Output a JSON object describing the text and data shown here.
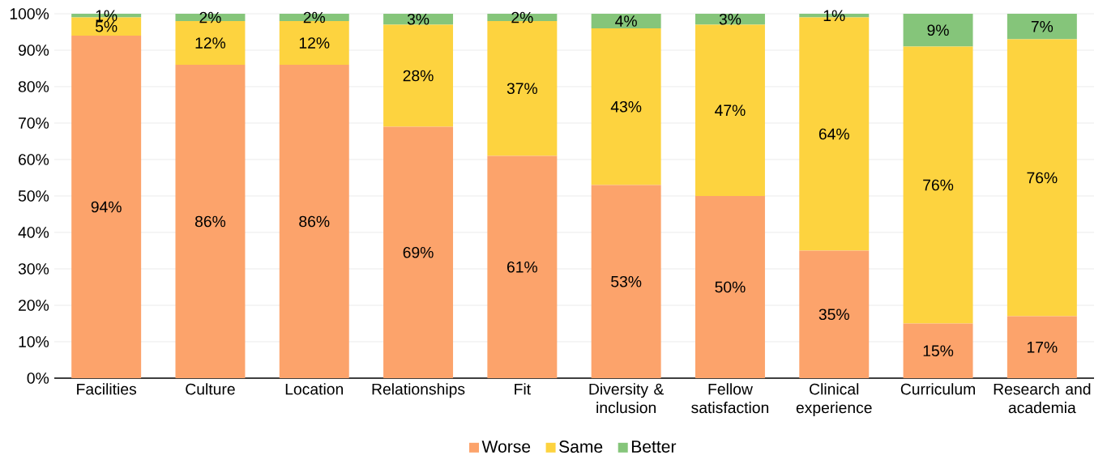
{
  "chart_data": {
    "type": "bar",
    "stacked": true,
    "categories": [
      "Facilities",
      "Culture",
      "Location",
      "Relationships",
      "Fit",
      "Diversity & inclusion",
      "Fellow satisfaction",
      "Clinical experience",
      "Curriculum",
      "Research and academia"
    ],
    "series": [
      {
        "name": "Worse",
        "color": "#fca36b",
        "values": [
          94,
          86,
          86,
          69,
          61,
          53,
          50,
          35,
          15,
          17
        ],
        "value_labels": [
          "94%",
          "86%",
          "86%",
          "69%",
          "61%",
          "53%",
          "50%",
          "35%",
          "15%",
          "17%"
        ]
      },
      {
        "name": "Same",
        "color": "#fdd33f",
        "values": [
          5,
          12,
          12,
          28,
          37,
          43,
          47,
          64,
          76,
          76
        ],
        "value_labels": [
          "5%",
          "12%",
          "12%",
          "28%",
          "37%",
          "43%",
          "47%",
          "64%",
          "76%",
          "76%"
        ]
      },
      {
        "name": "Better",
        "color": "#85c57a",
        "values": [
          1,
          2,
          2,
          3,
          2,
          4,
          3,
          1,
          9,
          7
        ],
        "value_labels": [
          "1%",
          "2%",
          "2%",
          "3%",
          "2%",
          "4%",
          "3%",
          "1%",
          "9%",
          "7%"
        ]
      }
    ],
    "ylim": [
      0,
      100
    ],
    "yticks": [
      {
        "value": 0,
        "label": "0%"
      },
      {
        "value": 10,
        "label": "10%"
      },
      {
        "value": 20,
        "label": "20%"
      },
      {
        "value": 30,
        "label": "30%"
      },
      {
        "value": 40,
        "label": "40%"
      },
      {
        "value": 50,
        "label": "50%"
      },
      {
        "value": 60,
        "label": "60%"
      },
      {
        "value": 70,
        "label": "70%"
      },
      {
        "value": 80,
        "label": "80%"
      },
      {
        "value": 90,
        "label": "90%"
      },
      {
        "value": 100,
        "label": "100%"
      }
    ],
    "grid": "y",
    "legend": "bottom"
  }
}
